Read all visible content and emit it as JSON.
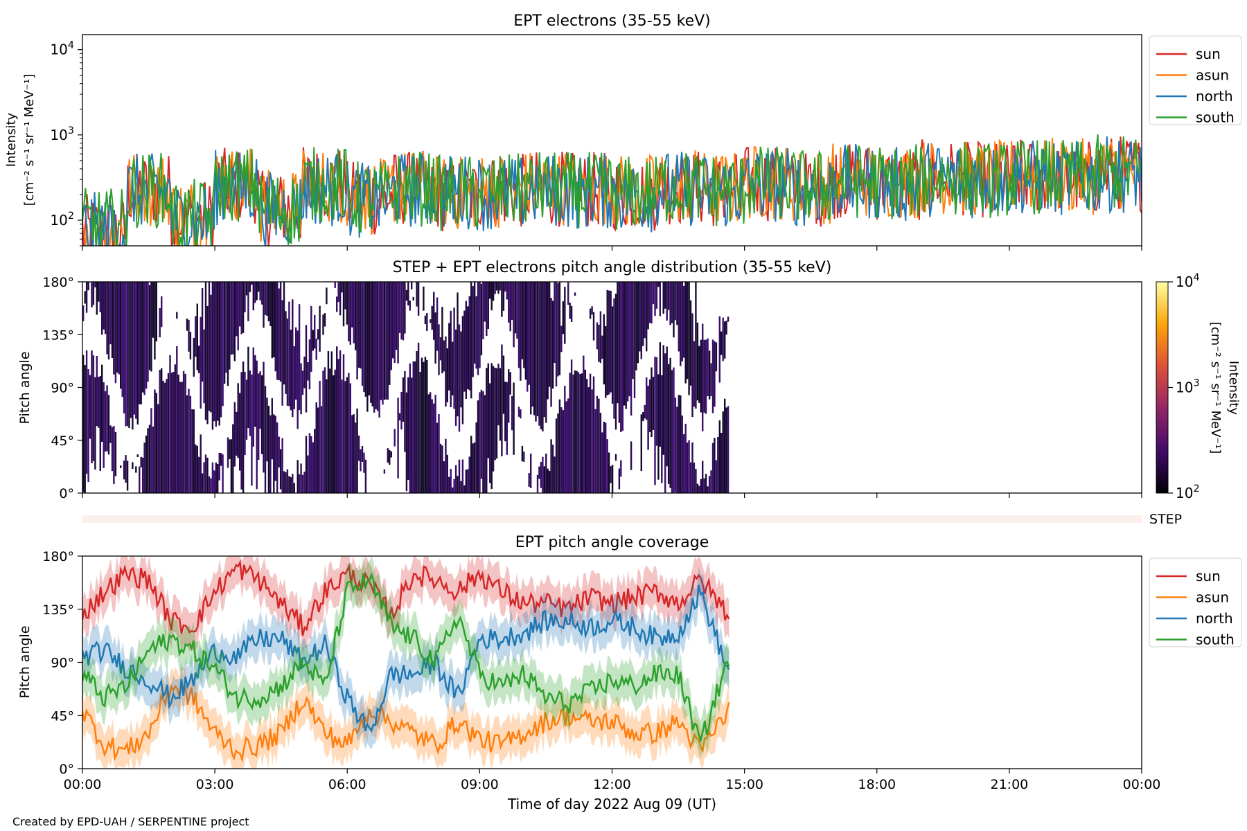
{
  "chart_data": [
    {
      "type": "line",
      "title": "EPT electrons (35-55 keV)",
      "ylabel_line1": "Intensity",
      "ylabel_line2": "[cm⁻² s⁻¹ sr⁻¹ MeV⁻¹]",
      "yscale": "log",
      "ylim": [
        50,
        15000
      ],
      "yticks": [
        {
          "value": 100,
          "base": "10",
          "exp": "2"
        },
        {
          "value": 1000,
          "base": "10",
          "exp": "3"
        },
        {
          "value": 10000,
          "base": "10",
          "exp": "4"
        }
      ],
      "xlim_hours": [
        0,
        24
      ],
      "legend_position": "right-outside-top",
      "series": [
        {
          "name": "sun",
          "color": "#d62728",
          "typical": [
            80,
            250,
            120,
            280,
            150,
            300,
            200,
            260,
            220,
            240,
            260,
            250,
            230,
            270,
            250,
            300,
            260,
            320,
            300,
            350,
            330,
            360,
            350,
            400,
            380
          ]
        },
        {
          "name": "asun",
          "color": "#ff7f0e",
          "typical": [
            90,
            260,
            130,
            300,
            160,
            280,
            210,
            270,
            230,
            250,
            270,
            260,
            240,
            280,
            260,
            310,
            280,
            330,
            320,
            360,
            340,
            370,
            360,
            410,
            390
          ]
        },
        {
          "name": "north",
          "color": "#1f77b4",
          "typical": [
            85,
            240,
            110,
            270,
            150,
            260,
            190,
            250,
            240,
            230,
            250,
            240,
            220,
            260,
            240,
            290,
            260,
            310,
            290,
            340,
            320,
            350,
            340,
            380,
            370
          ]
        },
        {
          "name": "south",
          "color": "#2ca02c",
          "typical": [
            95,
            250,
            120,
            290,
            150,
            290,
            200,
            260,
            230,
            240,
            260,
            250,
            230,
            270,
            250,
            300,
            270,
            320,
            310,
            350,
            330,
            360,
            350,
            400,
            380
          ]
        }
      ]
    },
    {
      "type": "heatmap",
      "title": "STEP + EPT electrons pitch angle distribution (35-55 keV)",
      "ylabel": "Pitch angle",
      "ylim": [
        0,
        180
      ],
      "yticks": [
        "0°",
        "45°",
        "90°",
        "135°",
        "180°"
      ],
      "data_end_hour": 14.65,
      "colorbar": {
        "label_line1": "Intensity",
        "label_line2": "[cm⁻² s⁻¹ sr⁻¹ MeV⁻¹]",
        "scale": "log",
        "range": [
          100,
          10000
        ],
        "ticks": [
          {
            "value": 100,
            "base": "10",
            "exp": "2"
          },
          {
            "value": 1000,
            "base": "10",
            "exp": "3"
          },
          {
            "value": 10000,
            "base": "10",
            "exp": "4"
          }
        ]
      }
    },
    {
      "type": "bar",
      "label": "STEP"
    },
    {
      "type": "line",
      "title": "EPT pitch angle coverage",
      "ylabel": "Pitch angle",
      "ylim": [
        0,
        180
      ],
      "yticks": [
        "0°",
        "45°",
        "90°",
        "135°",
        "180°"
      ],
      "x_hours": [
        0,
        0.5,
        1,
        1.5,
        2,
        2.5,
        3,
        3.5,
        4,
        4.5,
        5,
        5.5,
        6,
        6.5,
        7,
        7.5,
        8,
        8.5,
        9,
        9.5,
        10,
        10.5,
        11,
        11.5,
        12,
        12.5,
        13,
        13.5,
        14,
        14.65
      ],
      "legend_position": "right-outside-top",
      "series": [
        {
          "name": "sun",
          "color": "#d62728",
          "values": [
            130,
            150,
            165,
            160,
            125,
            120,
            150,
            170,
            160,
            140,
            120,
            150,
            165,
            155,
            130,
            165,
            160,
            150,
            165,
            150,
            140,
            140,
            135,
            145,
            140,
            145,
            150,
            140,
            160,
            130
          ]
        },
        {
          "name": "asun",
          "color": "#ff7f0e",
          "values": [
            50,
            20,
            15,
            30,
            70,
            60,
            30,
            15,
            20,
            30,
            60,
            30,
            20,
            50,
            40,
            30,
            20,
            40,
            25,
            20,
            30,
            40,
            45,
            40,
            40,
            30,
            30,
            40,
            15,
            50
          ]
        },
        {
          "name": "north",
          "color": "#1f77b4",
          "values": [
            95,
            100,
            85,
            75,
            60,
            75,
            100,
            95,
            110,
            110,
            90,
            105,
            60,
            30,
            80,
            80,
            90,
            60,
            110,
            110,
            115,
            125,
            125,
            120,
            125,
            120,
            110,
            115,
            150,
            80
          ]
        },
        {
          "name": "south",
          "color": "#2ca02c",
          "values": [
            80,
            60,
            70,
            100,
            110,
            100,
            85,
            60,
            60,
            70,
            90,
            70,
            150,
            160,
            120,
            110,
            90,
            130,
            80,
            70,
            80,
            60,
            55,
            65,
            75,
            70,
            80,
            80,
            20,
            95
          ]
        }
      ]
    }
  ],
  "xaxis": {
    "ticks": [
      "00:00",
      "03:00",
      "06:00",
      "09:00",
      "12:00",
      "15:00",
      "18:00",
      "21:00",
      "00:00"
    ],
    "label": "Time of day 2022 Aug 09 (UT)"
  },
  "footer": "Created by EPD-UAH / SERPENTINE project"
}
